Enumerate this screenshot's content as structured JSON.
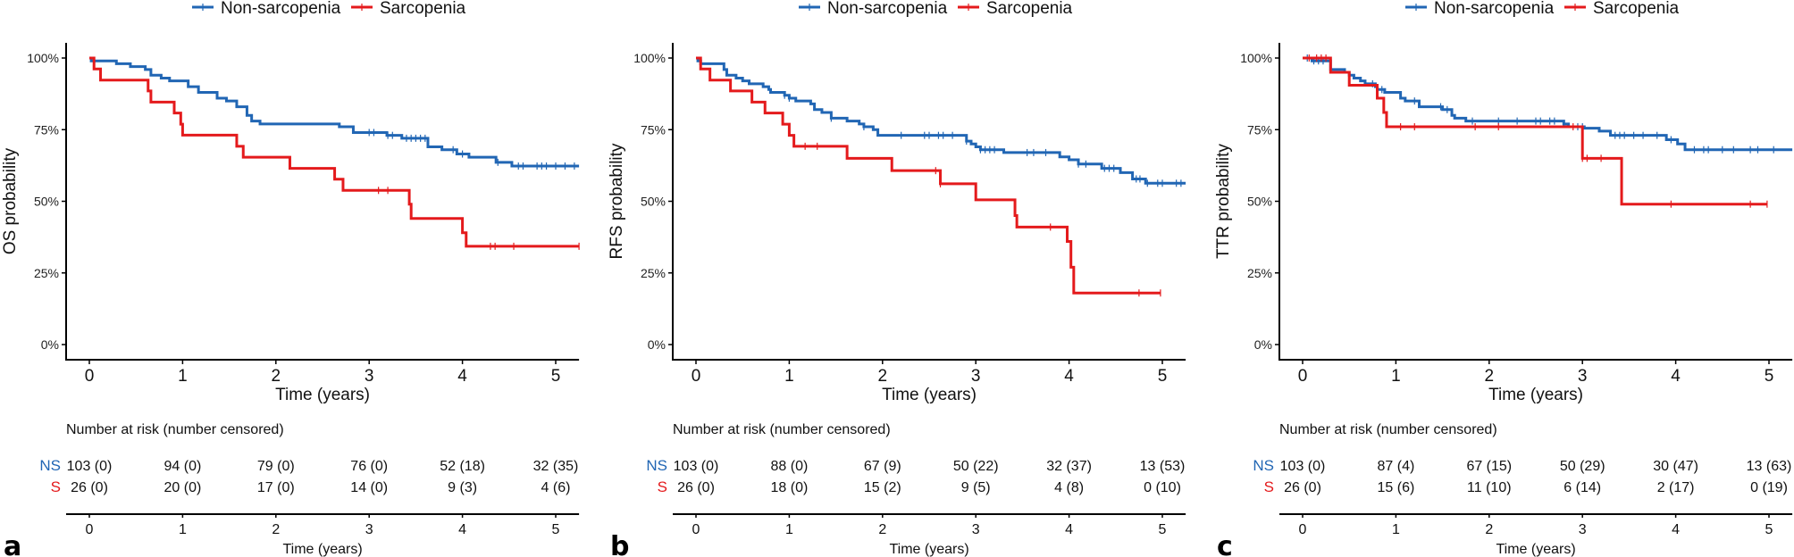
{
  "colors": {
    "non_sarcopenia": "#2166b4",
    "sarcopenia": "#e41a1c"
  },
  "chart_data": [
    {
      "type": "line",
      "subtype": "kaplan-meier",
      "panel": "a",
      "title": "",
      "xlabel": "Time (years)",
      "ylabel": "OS probability",
      "xlim": [
        -0.25,
        5.25
      ],
      "ylim": [
        0,
        1
      ],
      "xticks": [
        0,
        1,
        2,
        3,
        4,
        5
      ],
      "yticks": [
        0,
        0.25,
        0.5,
        0.75,
        1
      ],
      "ytick_labels": [
        "0%",
        "25%",
        "50%",
        "75%",
        "100%"
      ],
      "grid": false,
      "legend": {
        "placement": "top",
        "entries": [
          "Non-sarcopenia",
          "Sarcopenia"
        ]
      },
      "series": [
        {
          "name": "Non-sarcopenia",
          "steps": [
            [
              0,
              1.0
            ],
            [
              0.02,
              0.99
            ],
            [
              0.29,
              0.98
            ],
            [
              0.44,
              0.97
            ],
            [
              0.6,
              0.96
            ],
            [
              0.66,
              0.94
            ],
            [
              0.77,
              0.93
            ],
            [
              0.86,
              0.92
            ],
            [
              1.06,
              0.9
            ],
            [
              1.17,
              0.88
            ],
            [
              1.37,
              0.86
            ],
            [
              1.47,
              0.85
            ],
            [
              1.58,
              0.83
            ],
            [
              1.69,
              0.8
            ],
            [
              1.74,
              0.78
            ],
            [
              1.83,
              0.77
            ],
            [
              2.68,
              0.76
            ],
            [
              2.83,
              0.74
            ],
            [
              3.19,
              0.73
            ],
            [
              3.35,
              0.72
            ],
            [
              3.63,
              0.69
            ],
            [
              3.78,
              0.68
            ],
            [
              3.94,
              0.665
            ],
            [
              4.07,
              0.654
            ],
            [
              4.36,
              0.636
            ],
            [
              4.53,
              0.623
            ]
          ],
          "end": 5.25,
          "censored": [
            3.0,
            3.05,
            3.2,
            3.25,
            3.4,
            3.45,
            3.5,
            3.55,
            3.6,
            3.9,
            4.0,
            4.38,
            4.6,
            4.65,
            4.8,
            4.85,
            4.9,
            5.0,
            5.1,
            5.2
          ]
        },
        {
          "name": "Sarcopenia",
          "steps": [
            [
              0,
              1.0
            ],
            [
              0.05,
              0.962
            ],
            [
              0.12,
              0.923
            ],
            [
              0.63,
              0.885
            ],
            [
              0.66,
              0.846
            ],
            [
              0.91,
              0.808
            ],
            [
              0.98,
              0.769
            ],
            [
              1.0,
              0.731
            ],
            [
              1.58,
              0.692
            ],
            [
              1.65,
              0.654
            ],
            [
              2.15,
              0.615
            ],
            [
              2.63,
              0.577
            ],
            [
              2.72,
              0.538
            ],
            [
              3.43,
              0.49
            ],
            [
              3.45,
              0.44
            ],
            [
              4.0,
              0.39
            ],
            [
              4.04,
              0.343
            ]
          ],
          "end": 5.25,
          "censored": [
            3.1,
            3.2,
            4.3,
            4.35,
            4.55,
            5.25
          ]
        }
      ],
      "risk_table": {
        "title": "Number at risk (number censored)",
        "strata": [
          "NS",
          "S"
        ],
        "times": [
          0,
          1,
          2,
          3,
          4,
          5
        ],
        "rows": [
          [
            "103 (0)",
            "94 (0)",
            "79 (0)",
            "76 (0)",
            "52 (18)",
            "32 (35)"
          ],
          [
            "26 (0)",
            "20 (0)",
            "17 (0)",
            "14 (0)",
            "9 (3)",
            "4 (6)"
          ]
        ],
        "xlabel": "Time (years)"
      }
    },
    {
      "type": "line",
      "subtype": "kaplan-meier",
      "panel": "b",
      "title": "",
      "xlabel": "Time (years)",
      "ylabel": "RFS probability",
      "xlim": [
        -0.25,
        5.25
      ],
      "ylim": [
        0,
        1
      ],
      "xticks": [
        0,
        1,
        2,
        3,
        4,
        5
      ],
      "yticks": [
        0,
        0.25,
        0.5,
        0.75,
        1
      ],
      "ytick_labels": [
        "0%",
        "25%",
        "50%",
        "75%",
        "100%"
      ],
      "grid": false,
      "legend": {
        "placement": "top",
        "entries": [
          "Non-sarcopenia",
          "Sarcopenia"
        ]
      },
      "series": [
        {
          "name": "Non-sarcopenia",
          "steps": [
            [
              0,
              1.0
            ],
            [
              0.02,
              0.99
            ],
            [
              0.05,
              0.98
            ],
            [
              0.3,
              0.96
            ],
            [
              0.33,
              0.94
            ],
            [
              0.43,
              0.93
            ],
            [
              0.5,
              0.92
            ],
            [
              0.57,
              0.91
            ],
            [
              0.72,
              0.9
            ],
            [
              0.78,
              0.89
            ],
            [
              0.8,
              0.88
            ],
            [
              0.95,
              0.87
            ],
            [
              1.0,
              0.86
            ],
            [
              1.07,
              0.85
            ],
            [
              1.23,
              0.84
            ],
            [
              1.27,
              0.82
            ],
            [
              1.35,
              0.81
            ],
            [
              1.45,
              0.79
            ],
            [
              1.62,
              0.78
            ],
            [
              1.75,
              0.77
            ],
            [
              1.8,
              0.76
            ],
            [
              1.9,
              0.75
            ],
            [
              1.95,
              0.73
            ],
            [
              2.9,
              0.71
            ],
            [
              2.95,
              0.7
            ],
            [
              3.0,
              0.69
            ],
            [
              3.05,
              0.68
            ],
            [
              3.3,
              0.67
            ],
            [
              3.9,
              0.655
            ],
            [
              4.0,
              0.645
            ],
            [
              4.1,
              0.63
            ],
            [
              4.35,
              0.615
            ],
            [
              4.55,
              0.6
            ],
            [
              4.68,
              0.578
            ],
            [
              4.82,
              0.563
            ]
          ],
          "end": 5.25,
          "censored": [
            0.95,
            1.0,
            1.45,
            1.8,
            2.2,
            2.45,
            2.5,
            2.6,
            2.65,
            2.75,
            2.9,
            3.05,
            3.1,
            3.15,
            3.2,
            3.55,
            3.62,
            3.75,
            4.1,
            4.18,
            4.38,
            4.43,
            4.48,
            4.72,
            4.76,
            4.84,
            4.95,
            5.0,
            5.15,
            5.2
          ]
        },
        {
          "name": "Sarcopenia",
          "steps": [
            [
              0,
              1.0
            ],
            [
              0.05,
              0.962
            ],
            [
              0.15,
              0.923
            ],
            [
              0.37,
              0.885
            ],
            [
              0.6,
              0.846
            ],
            [
              0.74,
              0.808
            ],
            [
              0.93,
              0.769
            ],
            [
              1.0,
              0.73
            ],
            [
              1.05,
              0.692
            ],
            [
              1.62,
              0.65
            ],
            [
              2.1,
              0.607
            ],
            [
              2.62,
              0.561
            ],
            [
              3.0,
              0.505
            ],
            [
              3.42,
              0.45
            ],
            [
              3.44,
              0.41
            ],
            [
              3.98,
              0.36
            ],
            [
              4.02,
              0.27
            ],
            [
              4.05,
              0.18
            ]
          ],
          "end": 4.98,
          "censored": [
            1.17,
            1.3,
            2.57,
            2.62,
            3.8,
            4.75,
            4.98
          ]
        }
      ],
      "risk_table": {
        "title": "Number at risk (number censored)",
        "strata": [
          "NS",
          "S"
        ],
        "times": [
          0,
          1,
          2,
          3,
          4,
          5
        ],
        "rows": [
          [
            "103 (0)",
            "88 (0)",
            "67 (9)",
            "50 (22)",
            "32 (37)",
            "13 (53)"
          ],
          [
            "26 (0)",
            "18 (0)",
            "15 (2)",
            "9 (5)",
            "4 (8)",
            "0 (10)"
          ]
        ],
        "xlabel": "Time (years)"
      }
    },
    {
      "type": "line",
      "subtype": "kaplan-meier",
      "panel": "c",
      "title": "",
      "xlabel": "Time (years)",
      "ylabel": "TTR probability",
      "xlim": [
        -0.25,
        5.25
      ],
      "ylim": [
        0,
        1
      ],
      "xticks": [
        0,
        1,
        2,
        3,
        4,
        5
      ],
      "yticks": [
        0,
        0.25,
        0.5,
        0.75,
        1
      ],
      "ytick_labels": [
        "0%",
        "25%",
        "50%",
        "75%",
        "100%"
      ],
      "grid": false,
      "legend": {
        "placement": "top",
        "entries": [
          "Non-sarcopenia",
          "Sarcopenia"
        ]
      },
      "series": [
        {
          "name": "Non-sarcopenia",
          "steps": [
            [
              0,
              1.0
            ],
            [
              0.1,
              0.99
            ],
            [
              0.3,
              0.96
            ],
            [
              0.45,
              0.95
            ],
            [
              0.5,
              0.94
            ],
            [
              0.55,
              0.93
            ],
            [
              0.62,
              0.92
            ],
            [
              0.67,
              0.91
            ],
            [
              0.78,
              0.9
            ],
            [
              0.8,
              0.89
            ],
            [
              0.88,
              0.88
            ],
            [
              1.05,
              0.86
            ],
            [
              1.1,
              0.85
            ],
            [
              1.25,
              0.83
            ],
            [
              1.5,
              0.82
            ],
            [
              1.6,
              0.8
            ],
            [
              1.63,
              0.79
            ],
            [
              1.75,
              0.78
            ],
            [
              2.8,
              0.77
            ],
            [
              2.85,
              0.76
            ],
            [
              3.02,
              0.755
            ],
            [
              3.18,
              0.745
            ],
            [
              3.3,
              0.73
            ],
            [
              3.9,
              0.715
            ],
            [
              4.02,
              0.7
            ],
            [
              4.1,
              0.68
            ]
          ],
          "end": 5.25,
          "censored": [
            0.05,
            0.12,
            0.17,
            0.22,
            0.75,
            0.8,
            0.85,
            1.2,
            1.48,
            1.55,
            1.82,
            2.1,
            2.3,
            2.5,
            2.55,
            2.65,
            2.7,
            2.8,
            2.95,
            3.0,
            3.35,
            3.4,
            3.45,
            3.55,
            3.65,
            3.8,
            3.95,
            4.2,
            4.3,
            4.35,
            4.5,
            4.62,
            4.8,
            4.88,
            5.05
          ]
        },
        {
          "name": "Sarcopenia",
          "steps": [
            [
              0,
              1.0
            ],
            [
              0.3,
              0.95
            ],
            [
              0.5,
              0.905
            ],
            [
              0.8,
              0.86
            ],
            [
              0.87,
              0.81
            ],
            [
              0.9,
              0.76
            ],
            [
              3.0,
              0.65
            ],
            [
              3.42,
              0.49
            ]
          ],
          "end": 4.98,
          "censored": [
            0.07,
            0.15,
            0.2,
            0.25,
            1.05,
            1.2,
            1.85,
            2.1,
            2.9,
            3.0,
            3.05,
            3.2,
            3.95,
            4.8,
            4.98
          ]
        }
      ],
      "risk_table": {
        "title": "Number at risk (number censored)",
        "strata": [
          "NS",
          "S"
        ],
        "times": [
          0,
          1,
          2,
          3,
          4,
          5
        ],
        "rows": [
          [
            "103 (0)",
            "87 (4)",
            "67 (15)",
            "50 (29)",
            "30 (47)",
            "13 (63)"
          ],
          [
            "26 (0)",
            "15 (6)",
            "11 (10)",
            "6 (14)",
            "2 (17)",
            "0 (19)"
          ]
        ],
        "xlabel": "Time (years)"
      }
    }
  ],
  "panel_labels": [
    "a",
    "b",
    "c"
  ]
}
